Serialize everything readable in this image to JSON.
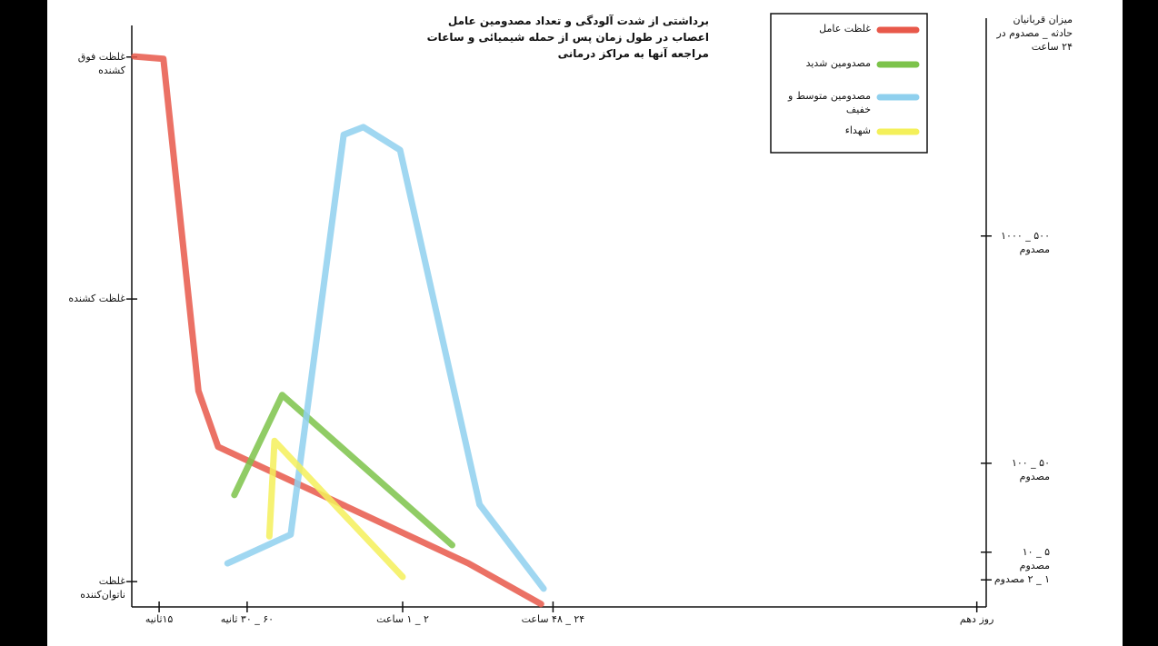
{
  "chart_data": {
    "type": "line",
    "title": "برداشتی از شدت آلودگی و تعداد مصدومین عامل اعصاب در طول زمان پس از حمله شیمیائی و ساعات مراجعه آنها به مراکز درمانی",
    "y2_axis_title": "میزان قربانیان حادثه _ مصدوم در ۲۴ ساعت",
    "xlim": [
      0,
      100
    ],
    "ylim": [
      0,
      100
    ],
    "y2lim": [
      0,
      100
    ],
    "xticks": [
      {
        "value": 3.2,
        "label": "۱۵ثانیه"
      },
      {
        "value": 13.5,
        "label": "۶۰ _ ۳۰ ثانیه"
      },
      {
        "value": 31.7,
        "label": "۲ _ ۱ ساعت"
      },
      {
        "value": 49.3,
        "label": "۲۴ _ ۴۸ ساعت"
      },
      {
        "value": 98.9,
        "label": "روز دهم"
      }
    ],
    "yticks": [
      {
        "value": 93.4,
        "label": "غلظت فوق کشنده"
      },
      {
        "value": 52.3,
        "label": "غلظت کشنده"
      },
      {
        "value": 4.3,
        "label": "غلظت ناتوان‌کننده"
      }
    ],
    "y2ticks": [
      {
        "value": 63.0,
        "label": "۵۰۰ _ ۱۰۰۰ مصدوم"
      },
      {
        "value": 24.4,
        "label": "۵۰ _ ۱۰۰ مصدوم"
      },
      {
        "value": 9.3,
        "label": "۵ _ ۱۰ مصدوم"
      },
      {
        "value": 4.6,
        "label": "۱ _ ۲ مصدوم"
      }
    ],
    "legend": "upper right",
    "series": [
      {
        "name": "غلظت عامل",
        "color": "#e8584a",
        "x": [
          0.3,
          3.7,
          7.8,
          10.1,
          39.4,
          47.9
        ],
        "values": [
          93.5,
          93.1,
          36.7,
          27.2,
          7.4,
          0.5
        ]
      },
      {
        "name": "مصدومین شدید",
        "color": "#7cc34a",
        "axis": "y2",
        "x": [
          12.0,
          17.6,
          37.5
        ],
        "values": [
          19.0,
          36.0,
          10.5
        ]
      },
      {
        "name": "مصدومین متوسط و خفیف",
        "color": "#8fd0ee",
        "axis": "y2",
        "x": [
          11.2,
          18.6,
          24.8,
          27.1,
          31.4,
          40.7,
          48.2
        ],
        "values": [
          7.4,
          12.3,
          80.2,
          81.5,
          77.6,
          17.4,
          3.1
        ]
      },
      {
        "name": "شهداء",
        "color": "#f4f05a",
        "axis": "y2",
        "x": [
          16.1,
          16.7,
          31.7
        ],
        "values": [
          12.0,
          28.2,
          5.1
        ]
      }
    ]
  }
}
